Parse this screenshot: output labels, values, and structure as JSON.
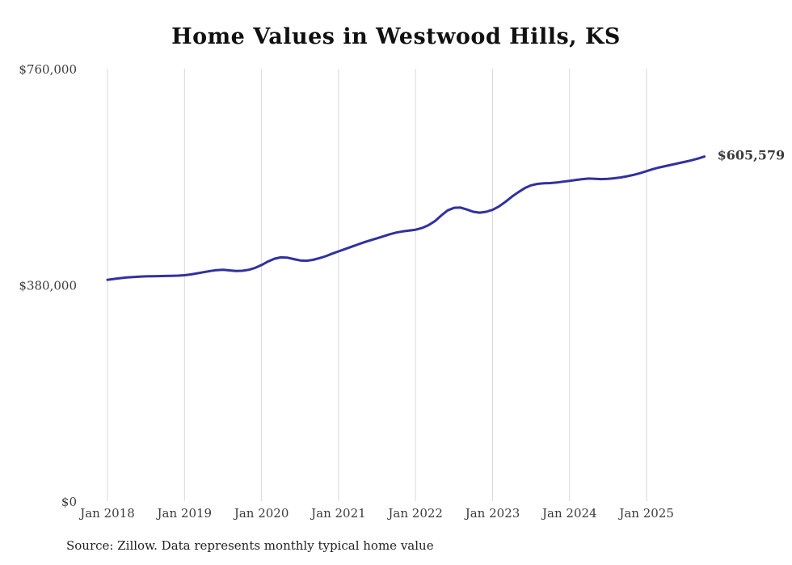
{
  "chart_data": {
    "type": "line",
    "title": "Home Values in Westwood Hills, KS",
    "source_note": "Source: Zillow. Data represents monthly typical home value",
    "series_name": "Typical home value",
    "unit": "USD",
    "x_start": "Jan 2018",
    "x_end": "Oct 2025",
    "x_tick_labels": [
      "Jan 2018",
      "Jan 2019",
      "Jan 2020",
      "Jan 2021",
      "Jan 2022",
      "Jan 2023",
      "Jan 2024",
      "Jan 2025"
    ],
    "y_tick_labels": [
      "$0",
      "$380,000",
      "$760,000"
    ],
    "y_ticks": [
      0,
      380000,
      760000
    ],
    "ylim": [
      0,
      760000
    ],
    "grid": "vertical-only",
    "legend": "none",
    "end_label": "$605,579",
    "end_value": 605579,
    "line_color": "#31319f",
    "grid_color": "#d8d8d8",
    "values": [
      389000,
      390500,
      392000,
      393000,
      393800,
      394500,
      395000,
      395300,
      395500,
      395700,
      396000,
      396400,
      397000,
      398500,
      400500,
      402500,
      404500,
      406000,
      406500,
      405500,
      404500,
      404800,
      406500,
      410000,
      415000,
      421000,
      426000,
      428500,
      428000,
      425500,
      423000,
      422500,
      424000,
      427000,
      430500,
      435000,
      439000,
      443000,
      447000,
      451000,
      455000,
      458500,
      462000,
      465500,
      469000,
      472000,
      474000,
      475500,
      477000,
      480000,
      485000,
      492000,
      502000,
      511000,
      515500,
      516000,
      512500,
      508500,
      507000,
      508500,
      512000,
      518000,
      526000,
      535000,
      543000,
      550000,
      555000,
      557500,
      558500,
      559000,
      560000,
      561500,
      563000,
      564500,
      566000,
      567000,
      566500,
      566000,
      566500,
      567500,
      569000,
      571000,
      573500,
      576500,
      580000,
      583500,
      586500,
      589000,
      591500,
      594000,
      596500,
      599000,
      602000,
      605579
    ]
  }
}
